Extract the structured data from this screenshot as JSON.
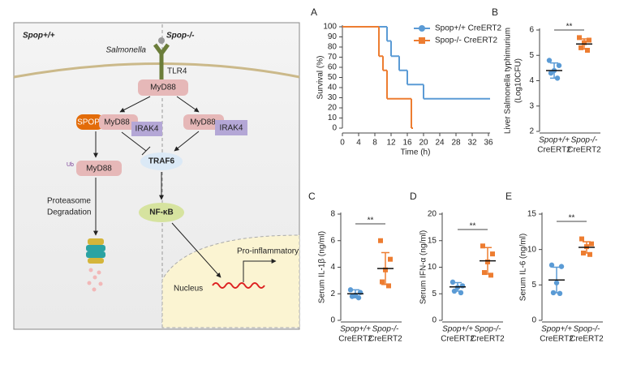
{
  "diagram": {
    "left_label": "Spop+/+",
    "right_label": "Spop-/-",
    "pathogen": "Salmonella",
    "receptor": "TLR4",
    "myd88_top": "MyD88",
    "spop": "SPOP",
    "myd88_left": "MyD88",
    "irak4_left": "IRAK4",
    "myd88_right": "MyD88",
    "irak4_right": "IRAK4",
    "ub": "Ub",
    "myd88_ub": "MyD88",
    "traf6": "TRAF6",
    "nfkb": "NF-κB",
    "degradation": [
      "Proteasome",
      "Degradation"
    ],
    "output": "Pro-inflammatory",
    "nucleus": "Nucleus"
  },
  "chart_data": [
    {
      "type": "line",
      "panel": "A",
      "ylabel": "Survival (%)",
      "xlabel": "Time (h)",
      "xlim": [
        0,
        36
      ],
      "xticks": [
        0,
        4,
        8,
        12,
        16,
        20,
        24,
        28,
        32,
        36
      ],
      "ylim": [
        0,
        100
      ],
      "yticks": [
        0,
        10,
        20,
        30,
        40,
        50,
        60,
        70,
        80,
        90,
        100
      ],
      "legend": "top-right",
      "series": [
        {
          "name": "Spop+/+ CreERT2",
          "color": "#5b9bd5",
          "x": [
            0,
            11,
            12,
            14,
            16,
            20,
            36
          ],
          "values": [
            100,
            86,
            71,
            57,
            43,
            29,
            29
          ]
        },
        {
          "name": "Spop-/- CreERT2",
          "color": "#ed7d31",
          "x": [
            0,
            9,
            10,
            11,
            17
          ],
          "values": [
            100,
            71,
            57,
            29,
            0
          ]
        }
      ]
    },
    {
      "type": "strip",
      "panel": "B",
      "ylabel": [
        "Liver Salmonella typhimurium",
        "(Log10CFU)"
      ],
      "ylim": [
        2,
        6
      ],
      "yticks": [
        2,
        3,
        4,
        5,
        6
      ],
      "significance": "**",
      "categories": [
        [
          "Spop+/+",
          "CreERT2"
        ],
        [
          "Spop-/-",
          "CreERT2"
        ]
      ],
      "series": [
        {
          "color": "#5b9bd5",
          "marker": "circle",
          "values": [
            4.8,
            4.6,
            4.4,
            4.3,
            4.1
          ],
          "mean": 4.4,
          "sd": 0.3
        },
        {
          "color": "#ed7d31",
          "marker": "square",
          "values": [
            5.7,
            5.6,
            5.5,
            5.3,
            5.2
          ],
          "mean": 5.45,
          "sd": 0.2
        }
      ]
    },
    {
      "type": "strip",
      "panel": "C",
      "ylabel": [
        "Serum IL-1β (ng/ml)"
      ],
      "ylim": [
        0,
        8
      ],
      "yticks": [
        0,
        2,
        4,
        6,
        8
      ],
      "significance": "**",
      "categories": [
        [
          "Spop+/+",
          "CreERT2"
        ],
        [
          "Spop-/-",
          "CreERT2"
        ]
      ],
      "series": [
        {
          "color": "#5b9bd5",
          "marker": "circle",
          "values": [
            2.3,
            2.1,
            1.9,
            1.8,
            1.7
          ],
          "mean": 2.0,
          "sd": 0.3
        },
        {
          "color": "#ed7d31",
          "marker": "square",
          "values": [
            6.0,
            4.6,
            3.8,
            2.9,
            2.6
          ],
          "mean": 3.9,
          "sd": 1.2
        }
      ]
    },
    {
      "type": "strip",
      "panel": "D",
      "ylabel": [
        "Serum IFN-α (ng/ml)"
      ],
      "ylim": [
        0,
        20
      ],
      "yticks": [
        0,
        5,
        10,
        15,
        20
      ],
      "significance": "**",
      "categories": [
        [
          "Spop+/+",
          "CreERT2"
        ],
        [
          "Spop-/-",
          "CreERT2"
        ]
      ],
      "series": [
        {
          "color": "#5b9bd5",
          "marker": "circle",
          "values": [
            7.2,
            6.5,
            6.2,
            5.5,
            5.2
          ],
          "mean": 6.3,
          "sd": 0.8
        },
        {
          "color": "#ed7d31",
          "marker": "square",
          "values": [
            14,
            12.5,
            11,
            9,
            8.5
          ],
          "mean": 11.2,
          "sd": 2.5
        }
      ]
    },
    {
      "type": "strip",
      "panel": "E",
      "ylabel": [
        "Serum IL-6 (ng/ml)"
      ],
      "ylim": [
        0,
        15
      ],
      "yticks": [
        0,
        5,
        10,
        15
      ],
      "significance": "**",
      "categories": [
        [
          "Spop+/+",
          "CreERT2"
        ],
        [
          "Spop-/-",
          "CreERT2"
        ]
      ],
      "series": [
        {
          "color": "#5b9bd5",
          "marker": "circle",
          "values": [
            7.8,
            7.6,
            5.3,
            3.9,
            3.8
          ],
          "mean": 5.7,
          "sd": 1.8
        },
        {
          "color": "#ed7d31",
          "marker": "square",
          "values": [
            11.5,
            10.8,
            10.4,
            9.5,
            9.3
          ],
          "mean": 10.3,
          "sd": 0.8
        }
      ]
    }
  ]
}
